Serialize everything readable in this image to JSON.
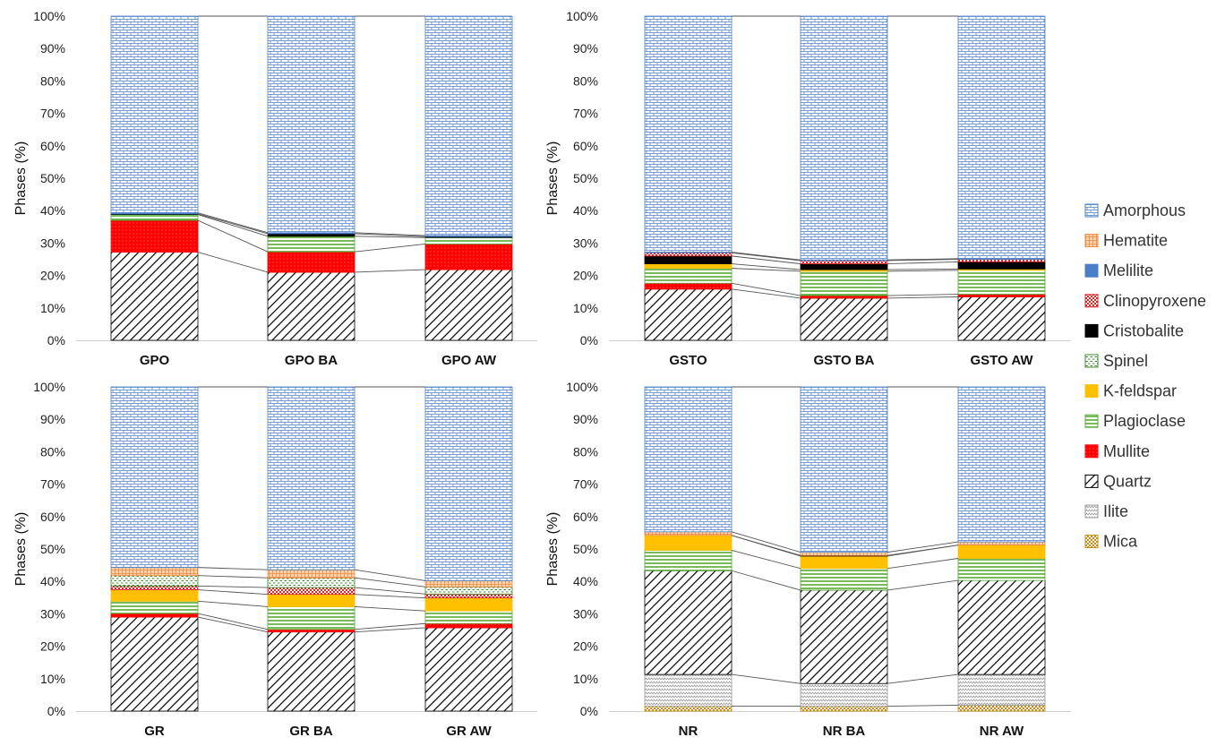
{
  "legend": [
    {
      "key": "amorphous",
      "label": "Amorphous"
    },
    {
      "key": "hematite",
      "label": "Hematite"
    },
    {
      "key": "melilite",
      "label": "Melilite"
    },
    {
      "key": "clinopyroxene",
      "label": "Clinopyroxene"
    },
    {
      "key": "cristobalite",
      "label": "Cristobalite"
    },
    {
      "key": "spinel",
      "label": "Spinel"
    },
    {
      "key": "kfeldspar",
      "label": "K-feldspar"
    },
    {
      "key": "plagioclase",
      "label": "Plagioclase"
    },
    {
      "key": "mullite",
      "label": "Mullite"
    },
    {
      "key": "quartz",
      "label": "Quartz"
    },
    {
      "key": "ilite",
      "label": "Ilite"
    },
    {
      "key": "mica",
      "label": "Mica"
    }
  ],
  "colors": {
    "amorphous": "#4a7fc8",
    "hematite": "#f08a3c",
    "melilite": "#4a7fc8",
    "clinopyroxene": "#e02020",
    "cristobalite": "#000000",
    "spinel": "#3a8a2a",
    "kfeldspar": "#ffc000",
    "plagioclase": "#55a832",
    "mullite": "#ff0000",
    "quartz": "#000000",
    "ilite": "#999999",
    "mica": "#c98a10"
  },
  "chart_data": [
    {
      "type": "bar",
      "stacked": true,
      "ylabel": "Phases (%)",
      "ylim": [
        0,
        100
      ],
      "yticks": [
        "0%",
        "10%",
        "20%",
        "30%",
        "40%",
        "50%",
        "60%",
        "70%",
        "80%",
        "90%",
        "100%"
      ],
      "categories": [
        "GPO",
        "GPO BA",
        "GPO AW"
      ],
      "series": [
        {
          "key": "mica",
          "values": [
            0,
            0,
            0
          ]
        },
        {
          "key": "ilite",
          "values": [
            0,
            0,
            0
          ]
        },
        {
          "key": "quartz",
          "values": [
            27.2,
            21.0,
            21.8
          ]
        },
        {
          "key": "mullite",
          "values": [
            9.8,
            6.3,
            7.9
          ]
        },
        {
          "key": "plagioclase",
          "values": [
            1.8,
            4.8,
            2.0
          ]
        },
        {
          "key": "kfeldspar",
          "values": [
            0,
            0,
            0
          ]
        },
        {
          "key": "spinel",
          "values": [
            0,
            0,
            0
          ]
        },
        {
          "key": "cristobalite",
          "values": [
            0.2,
            0.8,
            0.3
          ]
        },
        {
          "key": "clinopyroxene",
          "values": [
            0,
            0,
            0
          ]
        },
        {
          "key": "melilite",
          "values": [
            0.3,
            0.3,
            0.3
          ]
        },
        {
          "key": "hematite",
          "values": [
            0,
            0,
            0
          ]
        },
        {
          "key": "amorphous",
          "values": [
            60.7,
            66.8,
            67.7
          ]
        }
      ]
    },
    {
      "type": "bar",
      "stacked": true,
      "ylabel": "Phases (%)",
      "ylim": [
        0,
        100
      ],
      "yticks": [
        "0%",
        "10%",
        "20%",
        "30%",
        "40%",
        "50%",
        "60%",
        "70%",
        "80%",
        "90%",
        "100%"
      ],
      "categories": [
        "GSTO",
        "GSTO BA",
        "GSTO AW"
      ],
      "series": [
        {
          "key": "mica",
          "values": [
            0,
            0,
            0
          ]
        },
        {
          "key": "ilite",
          "values": [
            0,
            0,
            0
          ]
        },
        {
          "key": "quartz",
          "values": [
            15.8,
            13.0,
            13.4
          ]
        },
        {
          "key": "mullite",
          "values": [
            1.8,
            0.8,
            0.8
          ]
        },
        {
          "key": "plagioclase",
          "values": [
            4.6,
            7.5,
            7.4
          ]
        },
        {
          "key": "kfeldspar",
          "values": [
            1.4,
            0.5,
            0.4
          ]
        },
        {
          "key": "spinel",
          "values": [
            0,
            0,
            0
          ]
        },
        {
          "key": "cristobalite",
          "values": [
            2.4,
            1.8,
            2.2
          ]
        },
        {
          "key": "clinopyroxene",
          "values": [
            1.0,
            1.0,
            0.8
          ]
        },
        {
          "key": "melilite",
          "values": [
            0.2,
            0.2,
            0.2
          ]
        },
        {
          "key": "hematite",
          "values": [
            0,
            0,
            0
          ]
        },
        {
          "key": "amorphous",
          "values": [
            72.8,
            75.2,
            74.8
          ]
        }
      ]
    },
    {
      "type": "bar",
      "stacked": true,
      "ylabel": "Phases (%)",
      "ylim": [
        0,
        100
      ],
      "yticks": [
        "0%",
        "10%",
        "20%",
        "30%",
        "40%",
        "50%",
        "60%",
        "70%",
        "80%",
        "90%",
        "100%"
      ],
      "categories": [
        "GR",
        "GR BA",
        "GR AW"
      ],
      "series": [
        {
          "key": "mica",
          "values": [
            0,
            0,
            0
          ]
        },
        {
          "key": "ilite",
          "values": [
            0,
            0,
            0
          ]
        },
        {
          "key": "quartz",
          "values": [
            29.0,
            24.4,
            25.7
          ]
        },
        {
          "key": "mullite",
          "values": [
            1.1,
            0.8,
            1.3
          ]
        },
        {
          "key": "plagioclase",
          "values": [
            3.8,
            7.0,
            3.9
          ]
        },
        {
          "key": "kfeldspar",
          "values": [
            3.5,
            3.8,
            4.0
          ]
        },
        {
          "key": "spinel",
          "values": [
            0,
            0,
            0
          ]
        },
        {
          "key": "cristobalite",
          "values": [
            0,
            0,
            0
          ]
        },
        {
          "key": "clinopyroxene",
          "values": [
            1.2,
            2.1,
            1.2
          ]
        },
        {
          "key": "melilite",
          "values": [
            0,
            0,
            0
          ]
        },
        {
          "key": "spinel",
          "values": [
            3.2,
            3.0,
            2.2
          ]
        },
        {
          "key": "hematite",
          "values": [
            2.5,
            2.5,
            1.9
          ]
        },
        {
          "key": "amorphous",
          "values": [
            55.7,
            56.4,
            59.8
          ]
        }
      ]
    },
    {
      "type": "bar",
      "stacked": true,
      "ylabel": "Phases (%)",
      "ylim": [
        0,
        100
      ],
      "yticks": [
        "0%",
        "10%",
        "20%",
        "30%",
        "40%",
        "50%",
        "60%",
        "70%",
        "80%",
        "90%",
        "100%"
      ],
      "categories": [
        "NR",
        "NR BA",
        "NR AW"
      ],
      "series": [
        {
          "key": "mica",
          "values": [
            1.5,
            1.5,
            1.8
          ]
        },
        {
          "key": "ilite",
          "values": [
            9.8,
            7.0,
            9.5
          ]
        },
        {
          "key": "quartz",
          "values": [
            32.0,
            28.8,
            29.0
          ]
        },
        {
          "key": "plagioclase",
          "values": [
            6.3,
            6.7,
            6.8
          ]
        },
        {
          "key": "kfeldspar",
          "values": [
            4.6,
            3.8,
            4.1
          ]
        },
        {
          "key": "cristobalite",
          "values": [
            0,
            0.2,
            0
          ]
        },
        {
          "key": "hematite",
          "values": [
            1.1,
            1.0,
            1.0
          ]
        },
        {
          "key": "amorphous",
          "values": [
            44.7,
            51.0,
            47.8
          ]
        }
      ]
    }
  ]
}
